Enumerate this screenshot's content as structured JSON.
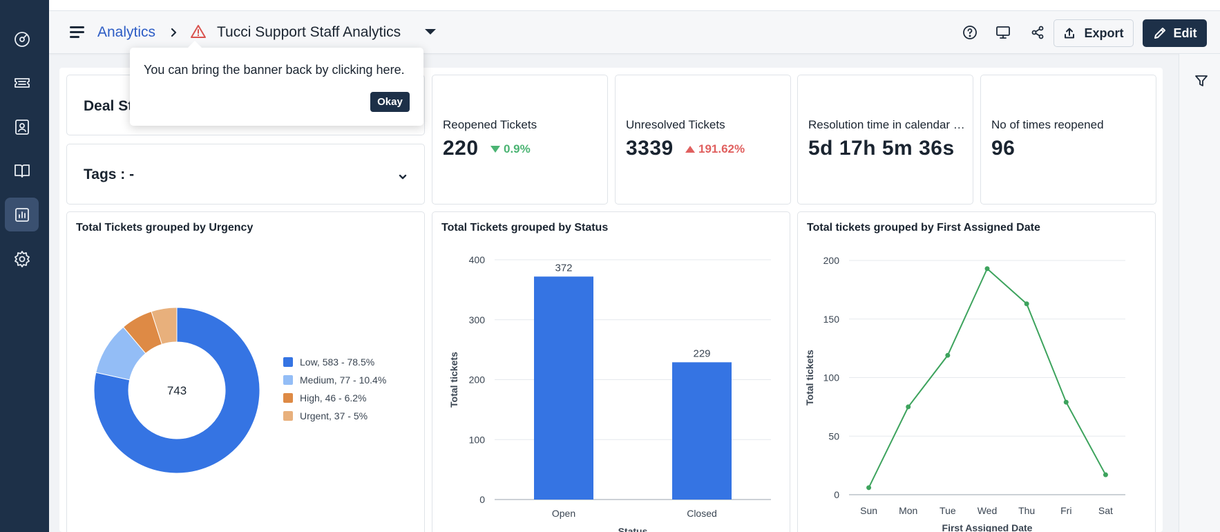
{
  "sidebar": {
    "items": [
      {
        "icon": "dashboard-icon",
        "active": false
      },
      {
        "icon": "ticket-icon",
        "active": false
      },
      {
        "icon": "contact-icon",
        "active": false
      },
      {
        "icon": "book-icon",
        "active": false
      },
      {
        "icon": "analytics-icon",
        "active": true
      },
      {
        "icon": "settings-icon",
        "active": false
      }
    ]
  },
  "header": {
    "breadcrumb_root": "Analytics",
    "title": "Tucci Support Staff Analytics",
    "export_label": "Export",
    "edit_label": "Edit"
  },
  "tooltip": {
    "message": "You can bring the banner back by clicking here.",
    "okay_label": "Okay"
  },
  "filters": {
    "deal_label": "Deal St",
    "tags_label": "Tags : -"
  },
  "kpis": [
    {
      "label": "Reopened Tickets",
      "value": "220",
      "delta": "0.9%",
      "direction": "down"
    },
    {
      "label": "Unresolved Tickets",
      "value": "3339",
      "delta": "191.62%",
      "direction": "up"
    },
    {
      "label": "Resolution time in calendar hours",
      "value": "5d 17h 5m 36s"
    },
    {
      "label": "No of times reopened",
      "value": "96"
    }
  ],
  "colors": {
    "sidebar": "#1d3048",
    "blue": "#3574e3",
    "green": "#3da35d",
    "link": "#2c5cc5",
    "warning": "#d9534f"
  },
  "chart_data": [
    {
      "type": "pie",
      "title": "Total Tickets grouped by Urgency",
      "center_label": "743",
      "slices": [
        {
          "name": "Low",
          "value": 583,
          "percent": 78.5,
          "legend": "Low, 583 - 78.5%",
          "color": "#3574e3"
        },
        {
          "name": "Medium",
          "value": 77,
          "percent": 10.4,
          "legend": "Medium, 77 -  10.4%",
          "color": "#93bdf6"
        },
        {
          "name": "High",
          "value": 46,
          "percent": 6.2,
          "legend": "High, 46 -  6.2%",
          "color": "#de8a45"
        },
        {
          "name": "Urgent",
          "value": 37,
          "percent": 5,
          "legend": "Urgent, 37 -  5%",
          "color": "#e8b07c"
        }
      ],
      "legend_position": "right"
    },
    {
      "type": "bar",
      "title": "Total Tickets grouped by Status",
      "categories": [
        "Open",
        "Closed"
      ],
      "values": [
        372,
        229
      ],
      "xlabel": "Status",
      "ylabel": "Total tickets",
      "ylim": [
        0,
        400
      ],
      "yticks": [
        "0",
        "100",
        "200",
        "300",
        "400"
      ]
    },
    {
      "type": "line",
      "title": "Total tickets grouped by First Assigned Date",
      "categories": [
        "Sun",
        "Mon",
        "Tue",
        "Wed",
        "Thu",
        "Fri",
        "Sat"
      ],
      "values": [
        6,
        75,
        119,
        193,
        163,
        79,
        17
      ],
      "xlabel": "First Assigned Date",
      "ylabel": "Total tickets",
      "ylim": [
        0,
        200
      ],
      "yticks": [
        "0",
        "50",
        "100",
        "150",
        "200"
      ]
    }
  ]
}
